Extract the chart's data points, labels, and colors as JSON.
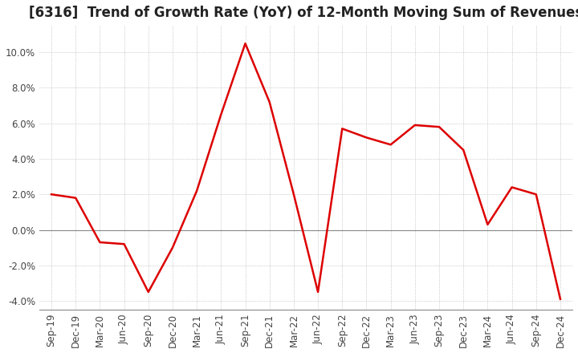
{
  "title": "[6316]  Trend of Growth Rate (YoY) of 12-Month Moving Sum of Revenues",
  "x_labels": [
    "Sep-19",
    "Dec-19",
    "Mar-20",
    "Jun-20",
    "Sep-20",
    "Dec-20",
    "Mar-21",
    "Jun-21",
    "Sep-21",
    "Dec-21",
    "Mar-22",
    "Jun-22",
    "Sep-22",
    "Dec-22",
    "Mar-23",
    "Jun-23",
    "Sep-23",
    "Dec-23",
    "Mar-24",
    "Jun-24",
    "Sep-24",
    "Dec-24"
  ],
  "y_values": [
    2.0,
    1.8,
    -0.7,
    -0.8,
    -3.5,
    -1.0,
    2.2,
    6.5,
    10.5,
    7.2,
    2.0,
    -3.5,
    5.7,
    5.2,
    4.8,
    5.9,
    5.8,
    4.5,
    0.3,
    2.4,
    2.0,
    -3.9
  ],
  "line_color": "#dd0000",
  "line_width": 1.8,
  "ylim": [
    -4.5,
    11.5
  ],
  "yticks": [
    -4.0,
    -2.0,
    0.0,
    2.0,
    4.0,
    6.0,
    8.0,
    10.0
  ],
  "grid_color": "#aaaaaa",
  "background_color": "#ffffff",
  "title_fontsize": 12,
  "tick_fontsize": 8.5
}
